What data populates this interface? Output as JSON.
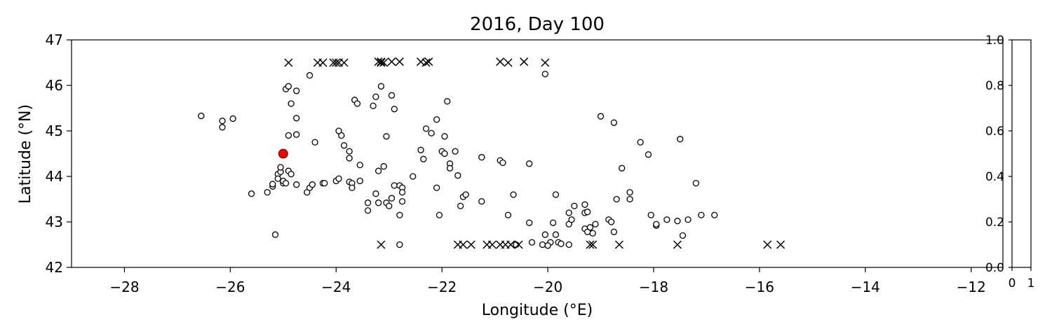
{
  "chart_data": [
    {
      "type": "scatter",
      "title": "2016, Day 100",
      "xlabel": "Longitude (°E)",
      "ylabel": "Latitude (°N)",
      "xlim": [
        -29,
        -11.4
      ],
      "ylim": [
        42,
        47
      ],
      "xticks": [
        -28,
        -26,
        -24,
        -22,
        -20,
        -18,
        -16,
        -14,
        -12
      ],
      "xtick_labels": [
        "−28",
        "−26",
        "−24",
        "−22",
        "−20",
        "−18",
        "−16",
        "−14",
        "−12"
      ],
      "yticks": [
        42,
        43,
        44,
        45,
        46,
        47
      ],
      "ytick_labels": [
        "42",
        "43",
        "44",
        "45",
        "46",
        "47"
      ],
      "grid": false,
      "series": [
        {
          "marker": "circle-open",
          "color": "#000000",
          "points": [
            [
              -26.55,
              45.33
            ],
            [
              -26.15,
              45.22
            ],
            [
              -26.15,
              45.08
            ],
            [
              -25.95,
              45.27
            ],
            [
              -25.6,
              43.62
            ],
            [
              -25.3,
              43.65
            ],
            [
              -25.2,
              43.78
            ],
            [
              -25.2,
              43.83
            ],
            [
              -25.1,
              44.05
            ],
            [
              -25.1,
              43.95
            ],
            [
              -25.05,
              44.1
            ],
            [
              -25.05,
              44.2
            ],
            [
              -25.0,
              43.85
            ],
            [
              -25.0,
              43.9
            ],
            [
              -24.95,
              43.85
            ],
            [
              -24.9,
              44.12
            ],
            [
              -24.85,
              44.05
            ],
            [
              -24.75,
              43.82
            ],
            [
              -24.95,
              45.92
            ],
            [
              -24.9,
              45.98
            ],
            [
              -24.75,
              45.88
            ],
            [
              -24.85,
              45.6
            ],
            [
              -24.75,
              45.28
            ],
            [
              -24.9,
              44.9
            ],
            [
              -24.75,
              44.92
            ],
            [
              -24.55,
              43.65
            ],
            [
              -24.5,
              43.75
            ],
            [
              -24.45,
              43.82
            ],
            [
              -24.25,
              43.85
            ],
            [
              -24.22,
              43.85
            ],
            [
              -24.0,
              43.9
            ],
            [
              -23.95,
              43.95
            ],
            [
              -24.5,
              46.22
            ],
            [
              -24.4,
              44.75
            ],
            [
              -23.9,
              44.9
            ],
            [
              -23.95,
              45.0
            ],
            [
              -23.85,
              44.68
            ],
            [
              -23.75,
              44.55
            ],
            [
              -23.75,
              44.4
            ],
            [
              -23.55,
              44.25
            ],
            [
              -23.75,
              43.88
            ],
            [
              -23.7,
              43.85
            ],
            [
              -23.7,
              43.75
            ],
            [
              -23.55,
              43.9
            ],
            [
              -23.65,
              45.68
            ],
            [
              -23.6,
              45.6
            ],
            [
              -23.3,
              45.55
            ],
            [
              -23.25,
              45.75
            ],
            [
              -23.15,
              45.98
            ],
            [
              -22.95,
              45.78
            ],
            [
              -22.9,
              45.48
            ],
            [
              -23.2,
              44.12
            ],
            [
              -23.1,
              44.22
            ],
            [
              -23.05,
              44.88
            ],
            [
              -23.25,
              43.62
            ],
            [
              -23.2,
              43.42
            ],
            [
              -23.4,
              43.42
            ],
            [
              -23.4,
              43.25
            ],
            [
              -23.05,
              43.42
            ],
            [
              -23.0,
              43.35
            ],
            [
              -22.95,
              43.52
            ],
            [
              -22.9,
              43.8
            ],
            [
              -22.8,
              43.8
            ],
            [
              -22.75,
              43.75
            ],
            [
              -22.75,
              43.65
            ],
            [
              -22.75,
              43.45
            ],
            [
              -22.8,
              43.15
            ],
            [
              -22.55,
              44.0
            ],
            [
              -22.4,
              44.58
            ],
            [
              -22.35,
              44.38
            ],
            [
              -22.3,
              45.05
            ],
            [
              -22.2,
              44.95
            ],
            [
              -22.1,
              45.25
            ],
            [
              -22.1,
              43.75
            ],
            [
              -22.05,
              43.15
            ],
            [
              -22.0,
              44.55
            ],
            [
              -21.95,
              44.5
            ],
            [
              -21.95,
              44.88
            ],
            [
              -21.9,
              45.65
            ],
            [
              -21.85,
              44.28
            ],
            [
              -21.85,
              44.18
            ],
            [
              -21.75,
              44.55
            ],
            [
              -21.7,
              44.02
            ],
            [
              -21.65,
              43.35
            ],
            [
              -21.6,
              43.55
            ],
            [
              -21.55,
              43.6
            ],
            [
              -21.25,
              43.45
            ],
            [
              -21.25,
              44.42
            ],
            [
              -20.9,
              44.35
            ],
            [
              -20.85,
              44.3
            ],
            [
              -20.75,
              43.15
            ],
            [
              -20.65,
              43.6
            ],
            [
              -20.35,
              44.28
            ],
            [
              -20.35,
              42.98
            ],
            [
              -20.05,
              46.25
            ],
            [
              -19.85,
              43.6
            ],
            [
              -20.05,
              42.72
            ],
            [
              -19.95,
              42.55
            ],
            [
              -19.9,
              42.98
            ],
            [
              -19.85,
              42.72
            ],
            [
              -19.8,
              42.55
            ],
            [
              -19.75,
              42.52
            ],
            [
              -19.6,
              42.95
            ],
            [
              -19.55,
              43.05
            ],
            [
              -19.6,
              43.2
            ],
            [
              -19.5,
              43.35
            ],
            [
              -19.3,
              43.38
            ],
            [
              -19.3,
              43.2
            ],
            [
              -19.25,
              43.22
            ],
            [
              -19.3,
              42.85
            ],
            [
              -19.25,
              42.78
            ],
            [
              -19.2,
              42.88
            ],
            [
              -19.15,
              42.75
            ],
            [
              -19.1,
              42.95
            ],
            [
              -19.0,
              45.32
            ],
            [
              -18.85,
              43.05
            ],
            [
              -18.8,
              43.0
            ],
            [
              -18.75,
              42.78
            ],
            [
              -18.75,
              45.18
            ],
            [
              -18.7,
              43.5
            ],
            [
              -18.6,
              44.18
            ],
            [
              -18.45,
              43.65
            ],
            [
              -18.45,
              43.5
            ],
            [
              -18.25,
              44.75
            ],
            [
              -18.1,
              44.48
            ],
            [
              -18.05,
              43.15
            ],
            [
              -17.95,
              42.92
            ],
            [
              -17.95,
              42.95
            ],
            [
              -17.75,
              43.05
            ],
            [
              -17.55,
              43.02
            ],
            [
              -17.5,
              44.82
            ],
            [
              -17.45,
              42.7
            ],
            [
              -17.35,
              43.05
            ],
            [
              -17.2,
              43.85
            ],
            [
              -17.1,
              43.15
            ],
            [
              -16.85,
              43.15
            ],
            [
              -25.15,
              42.72
            ],
            [
              -22.8,
              42.5
            ],
            [
              -20.6,
              42.5
            ],
            [
              -20.3,
              42.55
            ],
            [
              -20.1,
              42.5
            ],
            [
              -20.0,
              42.48
            ],
            [
              -19.6,
              42.5
            ]
          ]
        },
        {
          "marker": "x",
          "color": "#000000",
          "points": [
            [
              -24.9,
              46.5
            ],
            [
              -24.35,
              46.5
            ],
            [
              -24.25,
              46.5
            ],
            [
              -24.05,
              46.5
            ],
            [
              -24.0,
              46.5
            ],
            [
              -23.95,
              46.5
            ],
            [
              -23.85,
              46.5
            ],
            [
              -23.2,
              46.52
            ],
            [
              -23.15,
              46.52
            ],
            [
              -23.1,
              46.5
            ],
            [
              -23.15,
              46.5
            ],
            [
              -22.95,
              46.52
            ],
            [
              -22.8,
              46.52
            ],
            [
              -22.4,
              46.52
            ],
            [
              -22.3,
              46.5
            ],
            [
              -22.25,
              46.52
            ],
            [
              -20.9,
              46.52
            ],
            [
              -20.75,
              46.5
            ],
            [
              -20.45,
              46.52
            ],
            [
              -20.05,
              46.5
            ],
            [
              -23.15,
              42.5
            ],
            [
              -21.7,
              42.5
            ],
            [
              -21.6,
              42.5
            ],
            [
              -21.45,
              42.5
            ],
            [
              -21.15,
              42.5
            ],
            [
              -21.05,
              42.5
            ],
            [
              -20.9,
              42.5
            ],
            [
              -20.8,
              42.5
            ],
            [
              -20.7,
              42.5
            ],
            [
              -20.55,
              42.5
            ],
            [
              -19.2,
              42.5
            ],
            [
              -19.15,
              42.5
            ],
            [
              -18.65,
              42.5
            ],
            [
              -17.55,
              42.5
            ],
            [
              -15.85,
              42.5
            ],
            [
              -15.6,
              42.5
            ]
          ]
        },
        {
          "marker": "circle-filled",
          "color": "#ff0000",
          "points": [
            [
              -25.0,
              44.5
            ]
          ]
        }
      ]
    },
    {
      "type": "scatter",
      "xlim": [
        0,
        1
      ],
      "ylim": [
        0,
        1
      ],
      "xticks": [
        0,
        1
      ],
      "xtick_labels": [
        "0",
        "1"
      ],
      "yticks": [
        0.0,
        0.2,
        0.4,
        0.6,
        0.8,
        1.0
      ],
      "ytick_labels": [
        "0.0",
        "0.2",
        "0.4",
        "0.6",
        "0.8",
        "1.0"
      ],
      "series": []
    }
  ]
}
